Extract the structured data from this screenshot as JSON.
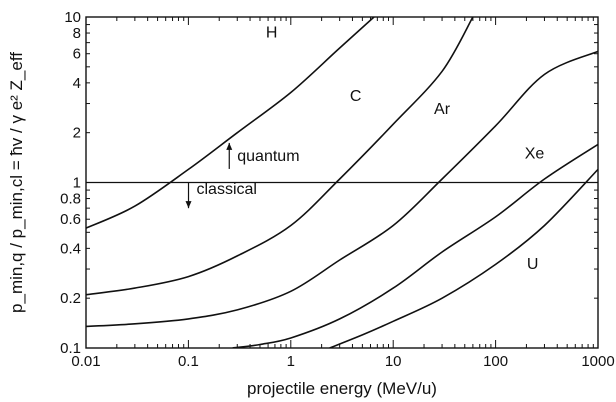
{
  "chart_data": {
    "type": "line",
    "xlabel": "projectile energy (MeV/u)",
    "ylabel": "p_min,q / p_min,cl = ħv / γ e² Z_eff",
    "x_scale": "log",
    "y_scale": "log",
    "xlim": [
      0.01,
      1000
    ],
    "ylim": [
      0.1,
      10
    ],
    "x_ticks": [
      {
        "value": 0.01,
        "label": "0.01"
      },
      {
        "value": 0.1,
        "label": "0.1"
      },
      {
        "value": 1,
        "label": "1"
      },
      {
        "value": 10,
        "label": "10"
      },
      {
        "value": 100,
        "label": "100"
      },
      {
        "value": 1000,
        "label": "1000"
      }
    ],
    "y_ticks": [
      {
        "value": 0.1,
        "label": "0.1"
      },
      {
        "value": 0.2,
        "label": "0.2"
      },
      {
        "value": 0.4,
        "label": "0.4"
      },
      {
        "value": 0.6,
        "label": "0.6"
      },
      {
        "value": 0.8,
        "label": "0.8"
      },
      {
        "value": 1,
        "label": "1"
      },
      {
        "value": 2,
        "label": "2"
      },
      {
        "value": 4,
        "label": "4"
      },
      {
        "value": 6,
        "label": "6"
      },
      {
        "value": 8,
        "label": "8"
      },
      {
        "value": 10,
        "label": "10"
      }
    ],
    "reference_line": {
      "y": 1
    },
    "annotations": [
      {
        "text": "quantum",
        "x": 0.3,
        "y": 1.35,
        "arrow": "up"
      },
      {
        "text": "classical",
        "x": 0.12,
        "y": 0.85,
        "arrow": "down"
      }
    ],
    "series": [
      {
        "name": "H",
        "label_at": {
          "x": 0.65,
          "y": 7.5
        },
        "x": [
          0.01,
          0.03,
          0.1,
          0.3,
          1,
          3,
          6.5
        ],
        "y": [
          0.53,
          0.72,
          1.2,
          2.0,
          3.5,
          6.5,
          10
        ]
      },
      {
        "name": "C",
        "label_at": {
          "x": 4.3,
          "y": 3.1
        },
        "x": [
          0.01,
          0.03,
          0.1,
          0.3,
          1,
          3,
          10,
          30,
          60
        ],
        "y": [
          0.21,
          0.23,
          0.27,
          0.36,
          0.55,
          1.05,
          2.25,
          4.7,
          10
        ]
      },
      {
        "name": "Ar",
        "label_at": {
          "x": 30,
          "y": 2.6
        },
        "x": [
          0.01,
          0.03,
          0.1,
          0.3,
          1,
          3,
          10,
          30,
          100,
          300,
          1000
        ],
        "y": [
          0.135,
          0.14,
          0.15,
          0.17,
          0.22,
          0.34,
          0.55,
          1.05,
          2.2,
          4.5,
          6.2
        ]
      },
      {
        "name": "Xe",
        "label_at": {
          "x": 240,
          "y": 1.4
        },
        "x": [
          0.27,
          0.5,
          1,
          3,
          10,
          30,
          100,
          300,
          1000
        ],
        "y": [
          0.1,
          0.105,
          0.115,
          0.15,
          0.23,
          0.38,
          0.62,
          1.05,
          1.7
        ]
      },
      {
        "name": "U",
        "label_at": {
          "x": 230,
          "y": 0.3
        },
        "x": [
          2.4,
          5,
          10,
          30,
          100,
          300,
          1000
        ],
        "y": [
          0.1,
          0.12,
          0.145,
          0.2,
          0.32,
          0.55,
          1.2
        ]
      }
    ]
  }
}
